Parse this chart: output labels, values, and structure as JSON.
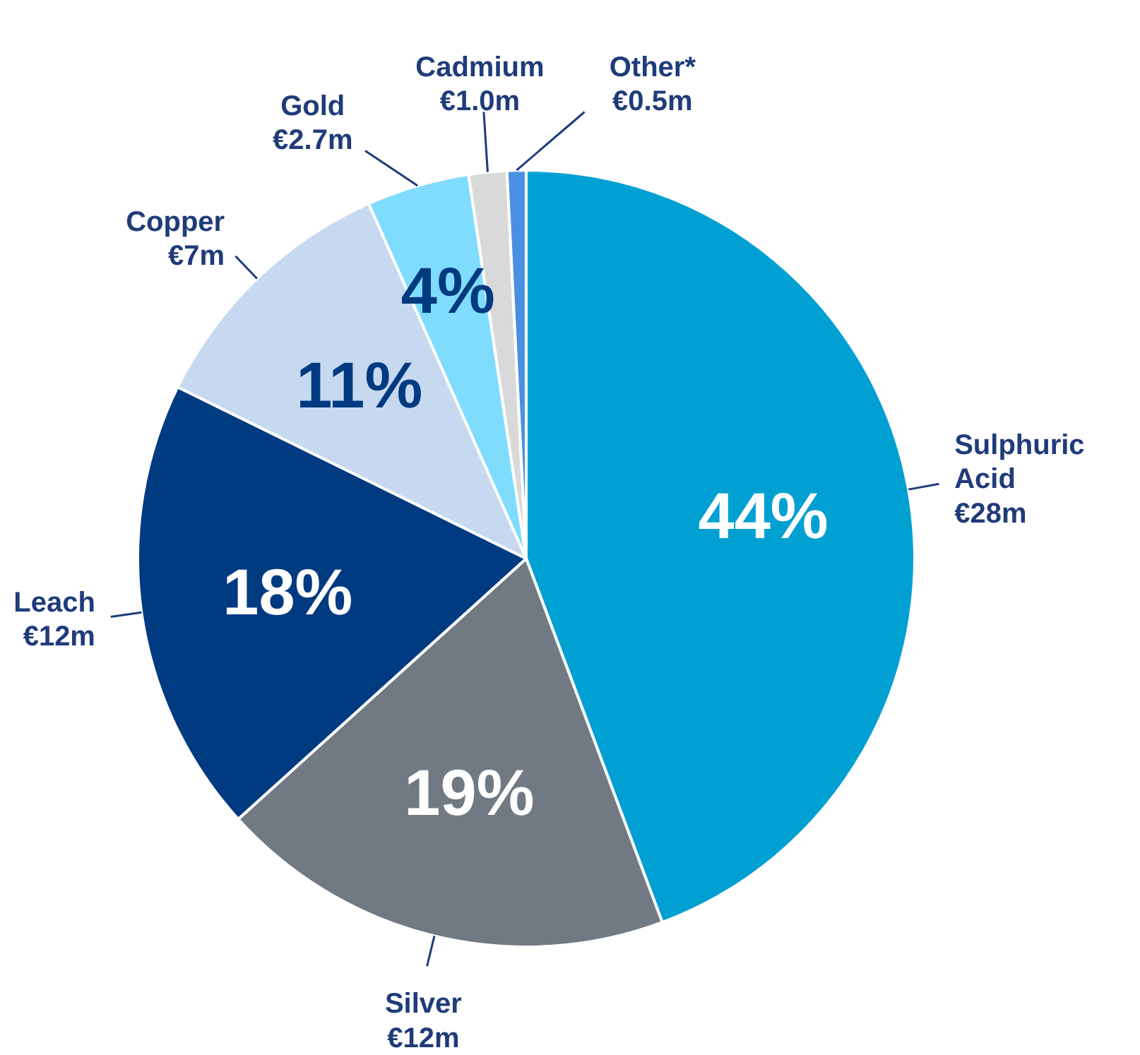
{
  "chart_data": {
    "type": "pie",
    "categories": [
      "Sulphuric\nAcid",
      "Silver",
      "Leach",
      "Copper",
      "Gold",
      "Cadmium",
      "Other*"
    ],
    "values": [
      28,
      12,
      12,
      7,
      2.7,
      1.0,
      0.5
    ],
    "value_labels": [
      "€28m",
      "€12m",
      "€12m",
      "€7m",
      "€2.7m",
      "€1.0m",
      "€0.5m"
    ],
    "colors": [
      "#00a0d2",
      "#717a82",
      "#003a80",
      "#c6d9f0",
      "#7fdcff",
      "#d9d9d9",
      "#4a90e2"
    ],
    "annotations": [
      "44%",
      "19%",
      "18%",
      "11%",
      "4%"
    ]
  }
}
